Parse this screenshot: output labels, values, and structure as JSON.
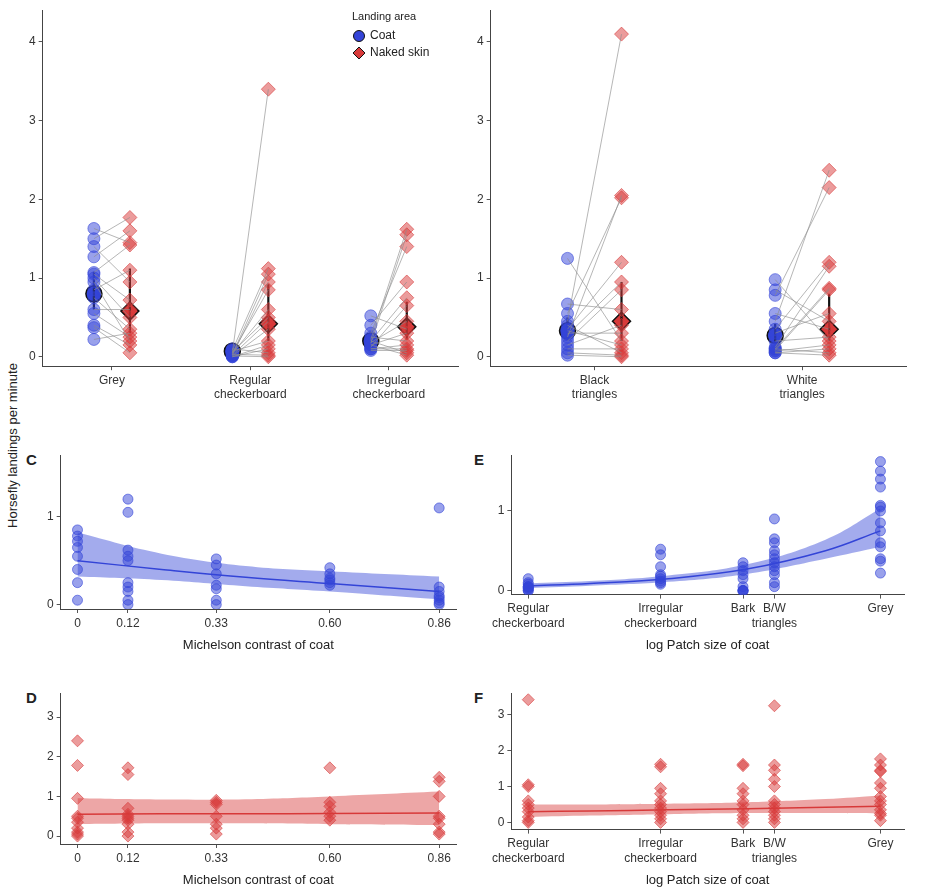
{
  "y_label": "Horsefly landings per minute",
  "chart_data": [
    {
      "type": "paired_strip",
      "categories": [
        "Grey",
        "Regular checkerboard",
        "Irregular checkerboard"
      ],
      "legend": "top",
      "legend_title": "Landing area",
      "grid": false,
      "ylim": [
        -0.12,
        4.4
      ],
      "yticks": [
        0,
        1,
        2,
        3,
        4
      ],
      "series": [
        {
          "name": "Coat",
          "color": "#3444d8",
          "marker": "circle",
          "values": [
            [
              1.63,
              1.5,
              1.4,
              1.27,
              1.07,
              1.05,
              1.0,
              0.95,
              0.85,
              0.75,
              0.6,
              0.55,
              0.4,
              0.37,
              0.22
            ],
            [
              0.1,
              0.08,
              0.07,
              0.05,
              0.05,
              0.04,
              0.03,
              0.02,
              0.02,
              0.01,
              0.0,
              0.0,
              0.06,
              0.03,
              0.01
            ],
            [
              0.52,
              0.4,
              0.3,
              0.25,
              0.22,
              0.2,
              0.18,
              0.17,
              0.15,
              0.12,
              0.1,
              0.1,
              0.08,
              0.2,
              0.15
            ]
          ],
          "mean": [
            0.8,
            0.07,
            0.2
          ],
          "ci_low": [
            0.6,
            0.04,
            0.14
          ],
          "ci_high": [
            1.08,
            0.1,
            0.28
          ]
        },
        {
          "name": "Naked skin",
          "color": "#d83a3a",
          "marker": "diamond",
          "values": [
            [
              1.45,
              1.77,
              0.95,
              1.6,
              1.42,
              0.72,
              0.5,
              0.2,
              1.1,
              0.35,
              0.6,
              0.25,
              0.15,
              0.05,
              0.3
            ],
            [
              0.05,
              1.12,
              0.2,
              3.4,
              0.85,
              0.6,
              1.05,
              0.45,
              0.95,
              0.35,
              0.15,
              0.1,
              0.5,
              0.02,
              0.0
            ],
            [
              0.35,
              0.95,
              1.4,
              0.2,
              1.62,
              0.75,
              0.45,
              1.55,
              0.3,
              0.65,
              0.15,
              0.1,
              0.08,
              0.05,
              0.02
            ]
          ],
          "mean": [
            0.58,
            0.42,
            0.38
          ],
          "ci_low": [
            0.3,
            0.2,
            0.22
          ],
          "ci_high": [
            1.12,
            0.92,
            0.7
          ]
        }
      ]
    },
    {
      "type": "paired_strip",
      "categories": [
        "Black triangles",
        "White triangles"
      ],
      "grid": false,
      "ylim": [
        -0.12,
        4.4
      ],
      "yticks": [
        0,
        1,
        2,
        3,
        4
      ],
      "series": [
        {
          "name": "Coat",
          "color": "#3444d8",
          "marker": "circle",
          "values": [
            [
              1.25,
              0.67,
              0.55,
              0.45,
              0.4,
              0.35,
              0.3,
              0.28,
              0.25,
              0.2,
              0.15,
              0.1,
              0.05,
              0.02,
              0.33
            ],
            [
              0.98,
              0.85,
              0.78,
              0.55,
              0.45,
              0.35,
              0.3,
              0.2,
              0.12,
              0.1,
              0.08,
              0.07,
              0.05,
              0.1,
              0.05
            ]
          ],
          "mean": [
            0.33,
            0.27
          ],
          "ci_low": [
            0.22,
            0.17
          ],
          "ci_high": [
            0.5,
            0.42
          ]
        },
        {
          "name": "Naked skin",
          "color": "#d83a3a",
          "marker": "diamond",
          "values": [
            [
              0.2,
              0.6,
              2.02,
              4.1,
              0.05,
              1.2,
              0.3,
              0.95,
              2.05,
              0.85,
              0.4,
              0.1,
              0.02,
              0.0,
              0.15
            ],
            [
              0.2,
              0.45,
              2.15,
              0.35,
              2.37,
              1.2,
              0.55,
              0.25,
              1.15,
              0.87,
              0.85,
              0.15,
              0.1,
              0.05,
              0.02
            ]
          ],
          "mean": [
            0.45,
            0.35
          ],
          "ci_low": [
            0.2,
            0.2
          ],
          "ci_high": [
            0.95,
            0.8
          ]
        }
      ]
    },
    {
      "type": "scatter",
      "panel": "C",
      "x_label": "Michelson contrast of coat",
      "color": "#3444d8",
      "marker": "circle",
      "grid": false,
      "x": [
        0,
        0.12,
        0.33,
        0.6,
        0.86
      ],
      "values": [
        [
          0.85,
          0.78,
          0.72,
          0.65,
          0.55,
          0.4,
          0.25,
          0.05
        ],
        [
          1.2,
          1.05,
          0.62,
          0.55,
          0.5,
          0.25,
          0.2,
          0.15,
          0.05,
          0.0
        ],
        [
          0.52,
          0.45,
          0.35,
          0.22,
          0.18,
          0.05,
          0.0
        ],
        [
          0.42,
          0.35,
          0.3,
          0.28,
          0.25,
          0.22
        ],
        [
          1.1,
          0.2,
          0.15,
          0.1,
          0.08,
          0.05,
          0.02,
          0.0
        ]
      ],
      "fit": {
        "x": [
          0,
          0.2,
          0.4,
          0.6,
          0.86
        ],
        "values": [
          0.5,
          0.4,
          0.31,
          0.24,
          0.15
        ],
        "lower": [
          0.32,
          0.28,
          0.21,
          0.15,
          0.06
        ],
        "upper": [
          0.82,
          0.58,
          0.44,
          0.38,
          0.32
        ]
      },
      "xlim": [
        -0.04,
        0.9
      ],
      "xticks": [
        0,
        0.12,
        0.33,
        {
          "value": 0.6,
          "label": "0.60"
        },
        0.86
      ],
      "ylim": [
        -0.05,
        1.7
      ],
      "yticks": [
        0,
        1
      ]
    },
    {
      "type": "scatter",
      "panel": "D",
      "x_label": "Michelson contrast of coat",
      "color": "#d83a3a",
      "marker": "diamond",
      "grid": false,
      "x": [
        0,
        0.12,
        0.33,
        0.6,
        0.86
      ],
      "values": [
        [
          2.4,
          1.78,
          0.95,
          0.5,
          0.45,
          0.35,
          0.2,
          0.1,
          0.05,
          0.0
        ],
        [
          1.72,
          1.55,
          0.7,
          0.55,
          0.5,
          0.45,
          0.4,
          0.3,
          0.1,
          0.0
        ],
        [
          0.9,
          0.85,
          0.8,
          0.5,
          0.3,
          0.2,
          0.05
        ],
        [
          1.72,
          0.85,
          0.75,
          0.6,
          0.5,
          0.4
        ],
        [
          1.48,
          1.38,
          1.0,
          0.5,
          0.45,
          0.3,
          0.1,
          0.05
        ]
      ],
      "fit": {
        "x": [
          0,
          0.2,
          0.4,
          0.6,
          0.86
        ],
        "values": [
          0.55,
          0.56,
          0.56,
          0.57,
          0.58
        ],
        "lower": [
          0.3,
          0.32,
          0.32,
          0.3,
          0.28
        ],
        "upper": [
          0.95,
          0.92,
          0.93,
          1.0,
          1.12
        ]
      },
      "xlim": [
        -0.04,
        0.9
      ],
      "xticks": [
        0,
        0.12,
        0.33,
        {
          "value": 0.6,
          "label": "0.60"
        },
        0.86
      ],
      "ylim": [
        -0.2,
        3.6
      ],
      "yticks": [
        0,
        1,
        2,
        3
      ]
    },
    {
      "type": "scatter",
      "panel": "E",
      "x_label": "log Patch size of coat",
      "color": "#3444d8",
      "marker": "circle",
      "grid": false,
      "x": [
        0.43,
        3.8,
        5.9,
        6.7,
        9.4
      ],
      "values": [
        [
          0.15,
          0.1,
          0.08,
          0.05,
          0.05,
          0.02,
          0,
          0,
          0.03,
          0.04
        ],
        [
          0.52,
          0.45,
          0.3,
          0.2,
          0.18,
          0.15,
          0.12,
          0.1,
          0.08
        ],
        [
          0.35,
          0.3,
          0.25,
          0.2,
          0.15,
          0.05,
          0,
          0,
          0,
          0
        ],
        [
          0.9,
          0.65,
          0.6,
          0.5,
          0.45,
          0.4,
          0.35,
          0.3,
          0.25,
          0.2,
          0.1,
          0.05
        ],
        [
          1.62,
          1.5,
          1.4,
          1.3,
          1.07,
          1.05,
          1.0,
          0.85,
          0.75,
          0.6,
          0.55,
          0.4,
          0.37,
          0.22
        ]
      ],
      "fit": {
        "x": [
          0.43,
          2,
          4,
          6,
          8,
          9.4
        ],
        "values": [
          0.06,
          0.09,
          0.15,
          0.27,
          0.5,
          0.75
        ],
        "lower": [
          0.03,
          0.06,
          0.11,
          0.21,
          0.4,
          0.55
        ],
        "upper": [
          0.09,
          0.12,
          0.19,
          0.33,
          0.64,
          1.03
        ]
      },
      "xlim": [
        0,
        10
      ],
      "xticks": [
        {
          "value": 0.43,
          "label": "Regular checkerboard"
        },
        {
          "value": 3.8,
          "label": "Irregular checkerboard"
        },
        {
          "value": 5.9,
          "label": "Bark"
        },
        {
          "value": 6.7,
          "label": "B/W triangles"
        },
        {
          "value": 9.4,
          "label": "Grey"
        }
      ],
      "ylim": [
        -0.05,
        1.7
      ],
      "yticks": [
        0,
        1
      ]
    },
    {
      "type": "scatter",
      "panel": "F",
      "x_label": "log Patch size of coat",
      "color": "#d83a3a",
      "marker": "diamond",
      "grid": false,
      "x": [
        0.43,
        3.8,
        5.9,
        6.7,
        9.4
      ],
      "values": [
        [
          3.42,
          1.05,
          1.0,
          0.6,
          0.5,
          0.4,
          0.3,
          0.15,
          0.05,
          0.0
        ],
        [
          1.62,
          1.55,
          0.95,
          0.8,
          0.6,
          0.5,
          0.4,
          0.3,
          0.2,
          0.1,
          0.0
        ],
        [
          1.62,
          1.58,
          0.95,
          0.8,
          0.6,
          0.5,
          0.35,
          0.2,
          0.1,
          0.0
        ],
        [
          3.25,
          1.6,
          1.45,
          1.2,
          1.0,
          0.6,
          0.5,
          0.4,
          0.3,
          0.2,
          0.1,
          0.0
        ],
        [
          1.77,
          1.6,
          1.45,
          1.42,
          1.1,
          0.95,
          0.72,
          0.6,
          0.5,
          0.35,
          0.25,
          0.2,
          0.05
        ]
      ],
      "fit": {
        "x": [
          0.43,
          2,
          4,
          6,
          8,
          9.4
        ],
        "values": [
          0.3,
          0.32,
          0.35,
          0.38,
          0.42,
          0.45
        ],
        "lower": [
          0.15,
          0.19,
          0.23,
          0.26,
          0.26,
          0.25
        ],
        "upper": [
          0.5,
          0.5,
          0.52,
          0.56,
          0.65,
          0.75
        ]
      },
      "xlim": [
        0,
        10
      ],
      "xticks": [
        {
          "value": 0.43,
          "label": "Regular checkerboard"
        },
        {
          "value": 3.8,
          "label": "Irregular checkerboard"
        },
        {
          "value": 5.9,
          "label": "Bark"
        },
        {
          "value": 6.7,
          "label": "B/W triangles"
        },
        {
          "value": 9.4,
          "label": "Grey"
        }
      ],
      "ylim": [
        -0.2,
        3.6
      ],
      "yticks": [
        0,
        1,
        2,
        3
      ]
    }
  ]
}
